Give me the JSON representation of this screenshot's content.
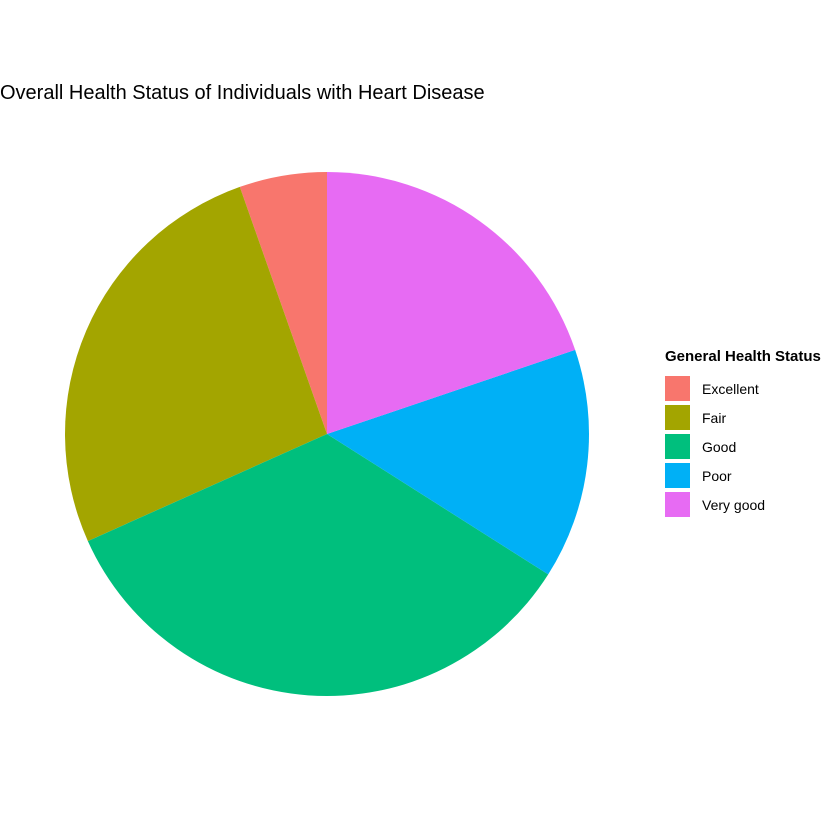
{
  "chart_data": {
    "type": "pie",
    "title": "Overall Health Status of Individuals with Heart Disease",
    "legend_title": "General Health Status",
    "legend_position": "right",
    "categories": [
      "Excellent",
      "Fair",
      "Good",
      "Poor",
      "Very good"
    ],
    "values": [
      5.4,
      26.3,
      34.3,
      14.2,
      19.8
    ],
    "colors": [
      "#F8766D",
      "#A3A500",
      "#00BF7D",
      "#00B0F6",
      "#E76BF3"
    ],
    "start": "12 o'clock",
    "direction": "counterclockwise"
  }
}
